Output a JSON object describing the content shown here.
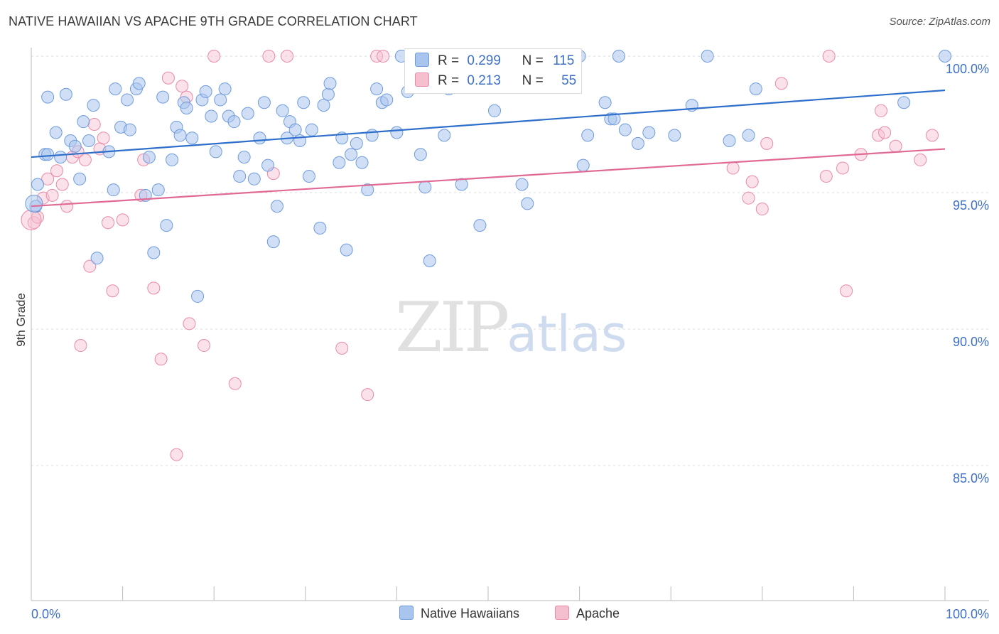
{
  "title": "NATIVE HAWAIIAN VS APACHE 9TH GRADE CORRELATION CHART",
  "source": "Source: ZipAtlas.com",
  "watermark": {
    "zip": "ZIP",
    "atlas": "atlas"
  },
  "legend_top": {
    "rows": [
      {
        "r_label": "R =",
        "r_value": "0.299",
        "n_label": "N =",
        "n_value": "115"
      },
      {
        "r_label": "R =",
        "r_value": "0.213",
        "n_label": "N =",
        "n_value": "55"
      }
    ]
  },
  "bottom_legend": {
    "series1": "Native Hawaiians",
    "series2": "Apache"
  },
  "colors": {
    "blue_fill": "#a9c5ee",
    "blue_stroke": "#6f9bdc",
    "blue_line": "#2f6fcc",
    "pink_fill": "#f6bfd0",
    "pink_stroke": "#e98aa8",
    "pink_line": "#e06a95",
    "tick_label": "#3d6fc8",
    "grid": "#dddddd"
  },
  "chart_data": {
    "type": "scatter",
    "title": "NATIVE HAWAIIAN VS APACHE 9TH GRADE CORRELATION CHART",
    "xlabel": "",
    "ylabel": "9th Grade",
    "xlim": [
      0,
      100
    ],
    "ylim": [
      80.5,
      100.5
    ],
    "x_tick_labels": [
      "0.0%",
      "100.0%"
    ],
    "y_ticks": [
      85,
      90,
      95,
      100
    ],
    "y_tick_labels": [
      "85.0%",
      "90.0%",
      "95.0%",
      "100.0%"
    ],
    "grid": true,
    "legend_position": "bottom",
    "series": [
      {
        "name": "Native Hawaiians",
        "R": 0.299,
        "N": 115,
        "trend": {
          "x": [
            0,
            100
          ],
          "y": [
            96.3,
            98.75
          ]
        },
        "points": [
          [
            0.5,
            94.5
          ],
          [
            0.7,
            95.3
          ],
          [
            1.5,
            96.4
          ],
          [
            1.8,
            96.4
          ],
          [
            2.7,
            97.2
          ],
          [
            3.2,
            96.3
          ],
          [
            3.8,
            98.6
          ],
          [
            4.3,
            96.9
          ],
          [
            4.8,
            96.7
          ],
          [
            5.3,
            95.5
          ],
          [
            5.7,
            97.6
          ],
          [
            6.3,
            96.9
          ],
          [
            6.8,
            98.2
          ],
          [
            7.2,
            92.6
          ],
          [
            8.5,
            96.5
          ],
          [
            9.0,
            95.1
          ],
          [
            9.2,
            98.8
          ],
          [
            9.8,
            97.4
          ],
          [
            10.5,
            98.4
          ],
          [
            10.8,
            97.3
          ],
          [
            11.5,
            98.8
          ],
          [
            11.8,
            99.0
          ],
          [
            12.5,
            94.9
          ],
          [
            12.9,
            96.3
          ],
          [
            13.4,
            92.8
          ],
          [
            13.9,
            95.1
          ],
          [
            14.4,
            98.5
          ],
          [
            14.8,
            93.8
          ],
          [
            15.4,
            96.2
          ],
          [
            15.9,
            97.4
          ],
          [
            16.3,
            97.1
          ],
          [
            16.7,
            98.3
          ],
          [
            17.0,
            98.1
          ],
          [
            17.6,
            97.0
          ],
          [
            18.2,
            91.2
          ],
          [
            18.7,
            98.4
          ],
          [
            19.1,
            98.7
          ],
          [
            19.7,
            97.8
          ],
          [
            20.2,
            96.5
          ],
          [
            20.7,
            98.4
          ],
          [
            21.2,
            98.8
          ],
          [
            21.6,
            97.8
          ],
          [
            22.2,
            97.6
          ],
          [
            22.8,
            95.6
          ],
          [
            23.3,
            96.3
          ],
          [
            23.7,
            97.9
          ],
          [
            24.4,
            95.5
          ],
          [
            25.0,
            97.0
          ],
          [
            25.5,
            98.3
          ],
          [
            25.9,
            96.0
          ],
          [
            26.5,
            93.2
          ],
          [
            26.9,
            94.5
          ],
          [
            27.5,
            98.0
          ],
          [
            28.0,
            97.0
          ],
          [
            28.3,
            97.6
          ],
          [
            28.9,
            97.3
          ],
          [
            29.4,
            96.9
          ],
          [
            29.8,
            98.3
          ],
          [
            30.4,
            95.6
          ],
          [
            30.7,
            97.3
          ],
          [
            31.6,
            93.7
          ],
          [
            32.0,
            98.2
          ],
          [
            32.5,
            98.6
          ],
          [
            32.7,
            99.0
          ],
          [
            33.7,
            96.1
          ],
          [
            34.0,
            97.0
          ],
          [
            34.5,
            92.9
          ],
          [
            35.0,
            96.4
          ],
          [
            35.6,
            96.8
          ],
          [
            36.2,
            96.1
          ],
          [
            36.8,
            95.1
          ],
          [
            37.3,
            97.1
          ],
          [
            37.8,
            98.8
          ],
          [
            38.4,
            98.3
          ],
          [
            38.9,
            98.4
          ],
          [
            40.0,
            97.2
          ],
          [
            40.5,
            100.0
          ],
          [
            41.2,
            98.7
          ],
          [
            42.0,
            100.0
          ],
          [
            42.6,
            96.4
          ],
          [
            43.1,
            95.2
          ],
          [
            43.6,
            92.5
          ],
          [
            44.0,
            100.0
          ],
          [
            45.2,
            97.1
          ],
          [
            45.7,
            98.8
          ],
          [
            46.4,
            100.0
          ],
          [
            47.1,
            95.3
          ],
          [
            48.7,
            100.0
          ],
          [
            49.1,
            93.8
          ],
          [
            50.2,
            100.0
          ],
          [
            50.7,
            98.0
          ],
          [
            52.3,
            99.0
          ],
          [
            53.7,
            95.3
          ],
          [
            54.3,
            94.6
          ],
          [
            56.3,
            100.0
          ],
          [
            58.0,
            100.0
          ],
          [
            60.0,
            100.0
          ],
          [
            60.4,
            96.0
          ],
          [
            60.9,
            97.1
          ],
          [
            62.8,
            98.3
          ],
          [
            63.4,
            97.7
          ],
          [
            63.8,
            97.7
          ],
          [
            64.3,
            100.0
          ],
          [
            65.0,
            97.3
          ],
          [
            66.4,
            96.8
          ],
          [
            67.6,
            97.2
          ],
          [
            70.4,
            97.1
          ],
          [
            72.3,
            98.2
          ],
          [
            74.0,
            100.0
          ],
          [
            76.4,
            96.9
          ],
          [
            78.5,
            97.1
          ],
          [
            79.3,
            98.8
          ],
          [
            95.5,
            98.3
          ],
          [
            100.0,
            100.0
          ],
          [
            1.8,
            98.5
          ]
        ]
      },
      {
        "name": "Apache",
        "R": 0.213,
        "N": 55,
        "trend": {
          "x": [
            0,
            100
          ],
          "y": [
            94.5,
            96.6
          ]
        },
        "points": [
          [
            0.3,
            93.9
          ],
          [
            0.7,
            94.1
          ],
          [
            1.3,
            94.8
          ],
          [
            1.8,
            95.5
          ],
          [
            2.3,
            94.9
          ],
          [
            2.8,
            95.8
          ],
          [
            3.4,
            95.3
          ],
          [
            3.9,
            94.5
          ],
          [
            4.5,
            96.3
          ],
          [
            5.1,
            96.5
          ],
          [
            5.4,
            89.4
          ],
          [
            5.9,
            96.2
          ],
          [
            6.4,
            92.3
          ],
          [
            6.9,
            97.5
          ],
          [
            7.5,
            96.6
          ],
          [
            7.9,
            97.0
          ],
          [
            8.4,
            93.9
          ],
          [
            8.9,
            91.4
          ],
          [
            10.0,
            94.0
          ],
          [
            12.3,
            96.2
          ],
          [
            13.4,
            91.5
          ],
          [
            14.2,
            88.9
          ],
          [
            15.0,
            99.2
          ],
          [
            15.9,
            85.4
          ],
          [
            16.5,
            98.9
          ],
          [
            17.0,
            98.5
          ],
          [
            17.3,
            90.2
          ],
          [
            18.9,
            89.4
          ],
          [
            20.0,
            100.0
          ],
          [
            22.3,
            88.0
          ],
          [
            26.0,
            100.0
          ],
          [
            28.0,
            100.0
          ],
          [
            34.0,
            89.3
          ],
          [
            36.8,
            87.6
          ],
          [
            37.8,
            100.0
          ],
          [
            38.5,
            100.0
          ],
          [
            76.8,
            95.9
          ],
          [
            78.5,
            94.8
          ],
          [
            78.9,
            95.4
          ],
          [
            80.0,
            94.4
          ],
          [
            80.5,
            96.8
          ],
          [
            82.1,
            99.0
          ],
          [
            87.0,
            95.6
          ],
          [
            87.3,
            100.0
          ],
          [
            88.8,
            95.9
          ],
          [
            89.2,
            91.4
          ],
          [
            90.8,
            96.4
          ],
          [
            92.7,
            97.1
          ],
          [
            93.0,
            98.0
          ],
          [
            93.4,
            97.2
          ],
          [
            94.6,
            96.7
          ],
          [
            97.3,
            96.2
          ],
          [
            98.6,
            97.1
          ],
          [
            12.0,
            94.9
          ],
          [
            26.5,
            95.7
          ]
        ]
      }
    ]
  }
}
